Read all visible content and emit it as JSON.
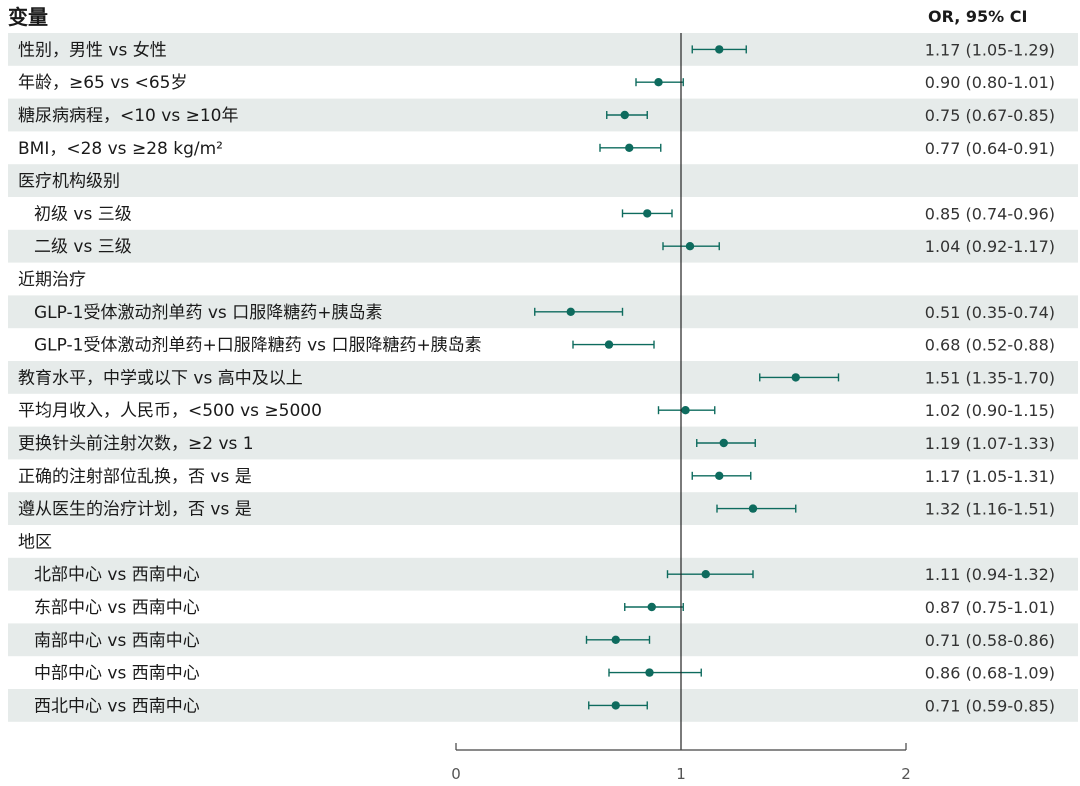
{
  "header": {
    "variable": "变量",
    "estimate": "OR, 95% CI"
  },
  "colors": {
    "band": "#e6ebea",
    "marker": "#0e6b5e",
    "axis": "#444444",
    "refline": "#222222"
  },
  "chart_data": {
    "type": "forest",
    "xlim": [
      0,
      2
    ],
    "reference": 1,
    "x_ticks": [
      "0",
      "1",
      "2"
    ],
    "rows": [
      {
        "label": "性别，男性 vs 女性",
        "indent": false,
        "or": 1.17,
        "lo": 1.05,
        "hi": 1.29,
        "text": "1.17 (1.05-1.29)"
      },
      {
        "label": "年龄，≥65 vs <65岁",
        "indent": false,
        "or": 0.9,
        "lo": 0.8,
        "hi": 1.01,
        "text": "0.90 (0.80-1.01)"
      },
      {
        "label": "糖尿病病程，<10 vs ≥10年",
        "indent": false,
        "or": 0.75,
        "lo": 0.67,
        "hi": 0.85,
        "text": "0.75 (0.67-0.85)"
      },
      {
        "label": "BMI，<28 vs ≥28 kg/m²",
        "indent": false,
        "or": 0.77,
        "lo": 0.64,
        "hi": 0.91,
        "text": "0.77 (0.64-0.91)"
      },
      {
        "label": "医疗机构级别",
        "indent": false,
        "or": null,
        "lo": null,
        "hi": null,
        "text": ""
      },
      {
        "label": "初级 vs 三级",
        "indent": true,
        "or": 0.85,
        "lo": 0.74,
        "hi": 0.96,
        "text": "0.85 (0.74-0.96)"
      },
      {
        "label": "二级 vs 三级",
        "indent": true,
        "or": 1.04,
        "lo": 0.92,
        "hi": 1.17,
        "text": "1.04 (0.92-1.17)"
      },
      {
        "label": "近期治疗",
        "indent": false,
        "or": null,
        "lo": null,
        "hi": null,
        "text": ""
      },
      {
        "label": "GLP-1受体激动剂单药 vs 口服降糖药+胰岛素",
        "indent": true,
        "or": 0.51,
        "lo": 0.35,
        "hi": 0.74,
        "text": "0.51 (0.35-0.74)"
      },
      {
        "label": "GLP-1受体激动剂单药+口服降糖药 vs 口服降糖药+胰岛素",
        "indent": true,
        "or": 0.68,
        "lo": 0.52,
        "hi": 0.88,
        "text": "0.68 (0.52-0.88)"
      },
      {
        "label": "教育水平，中学或以下 vs 高中及以上",
        "indent": false,
        "or": 1.51,
        "lo": 1.35,
        "hi": 1.7,
        "text": "1.51 (1.35-1.70)"
      },
      {
        "label": "平均月收入，人民币，<500 vs ≥5000",
        "indent": false,
        "or": 1.02,
        "lo": 0.9,
        "hi": 1.15,
        "text": "1.02 (0.90-1.15)"
      },
      {
        "label": "更换针头前注射次数，≥2 vs 1",
        "indent": false,
        "or": 1.19,
        "lo": 1.07,
        "hi": 1.33,
        "text": "1.19 (1.07-1.33)"
      },
      {
        "label": "正确的注射部位乱换，否 vs 是",
        "indent": false,
        "or": 1.17,
        "lo": 1.05,
        "hi": 1.31,
        "text": "1.17 (1.05-1.31)"
      },
      {
        "label": "遵从医生的治疗计划，否 vs 是",
        "indent": false,
        "or": 1.32,
        "lo": 1.16,
        "hi": 1.51,
        "text": "1.32 (1.16-1.51)"
      },
      {
        "label": "地区",
        "indent": false,
        "or": null,
        "lo": null,
        "hi": null,
        "text": ""
      },
      {
        "label": "北部中心 vs 西南中心",
        "indent": true,
        "or": 1.11,
        "lo": 0.94,
        "hi": 1.32,
        "text": "1.11 (0.94-1.32)"
      },
      {
        "label": "东部中心 vs 西南中心",
        "indent": true,
        "or": 0.87,
        "lo": 0.75,
        "hi": 1.01,
        "text": "0.87 (0.75-1.01)"
      },
      {
        "label": "南部中心 vs 西南中心",
        "indent": true,
        "or": 0.71,
        "lo": 0.58,
        "hi": 0.86,
        "text": "0.71 (0.58-0.86)"
      },
      {
        "label": "中部中心 vs 西南中心",
        "indent": true,
        "or": 0.86,
        "lo": 0.68,
        "hi": 1.09,
        "text": "0.86 (0.68-1.09)"
      },
      {
        "label": "西北中心 vs 西南中心",
        "indent": true,
        "or": 0.71,
        "lo": 0.59,
        "hi": 0.85,
        "text": "0.71 (0.59-0.85)"
      }
    ]
  }
}
